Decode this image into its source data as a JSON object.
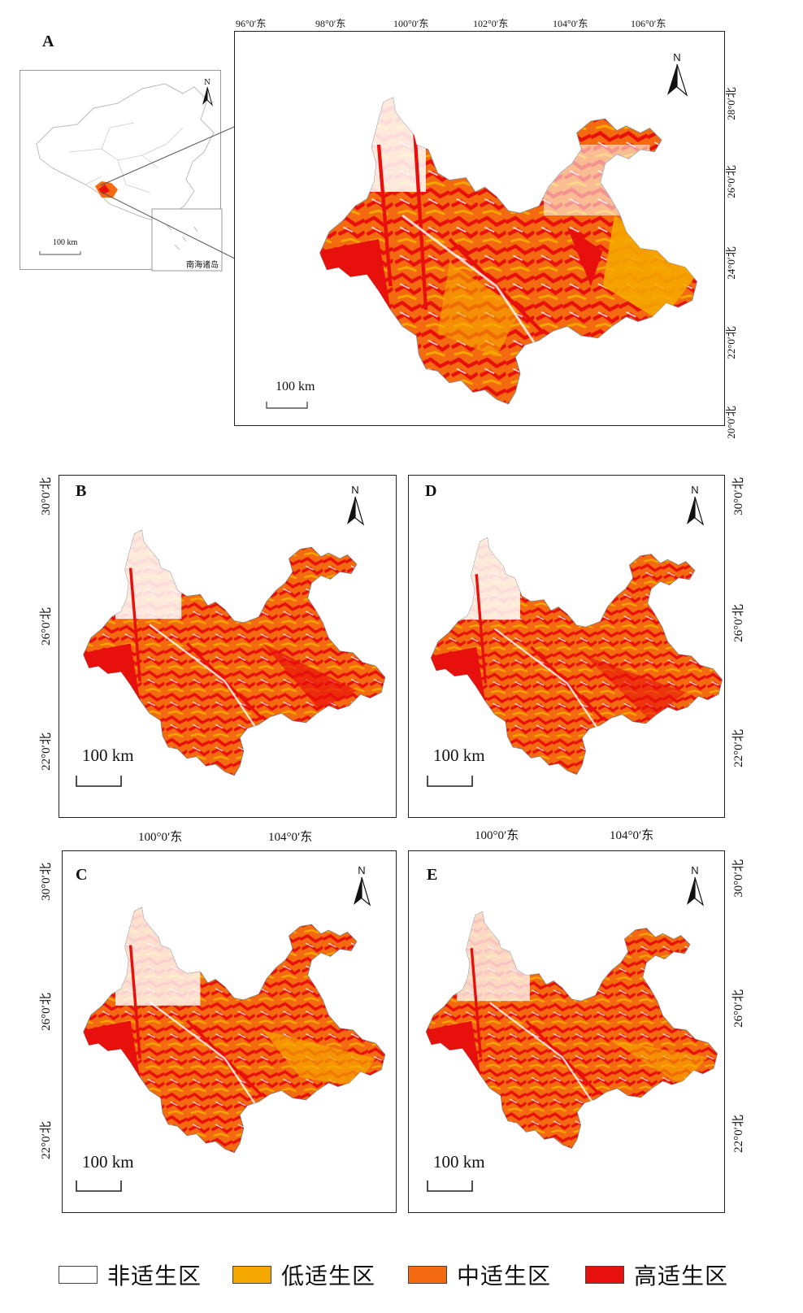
{
  "panels": {
    "A": {
      "label": "A"
    },
    "B": {
      "label": "B"
    },
    "C": {
      "label": "C"
    },
    "D": {
      "label": "D"
    },
    "E": {
      "label": "E"
    }
  },
  "main_map": {
    "top_ticks": [
      "96°0′东",
      "98°0′东",
      "100°0′东",
      "102°0′东",
      "104°0′东",
      "106°0′东"
    ],
    "right_ticks": [
      "28°0′北",
      "26°0′北",
      "24°0′北",
      "22°0′北",
      "20°0′北"
    ],
    "scale_label": "100 km"
  },
  "inset_china": {
    "scale_label": "100 km",
    "south_sea_label": "南海诸岛",
    "north_label": "N"
  },
  "small_maps": {
    "north_label": "N",
    "scale_label": "100 km",
    "left_ticks": [
      "30°0′北",
      "26°0′北",
      "22°0′北"
    ],
    "right_ticks": [
      "30°0′北",
      "26°0′北",
      "22°0′北"
    ],
    "middle_ticks": [
      "100°0′东",
      "104°0′东"
    ]
  },
  "legend": [
    {
      "label": "非适生区",
      "color": "#ffffff"
    },
    {
      "label": "低适生区",
      "color": "#f5a800"
    },
    {
      "label": "中适生区",
      "color": "#f36a10"
    },
    {
      "label": "高适生区",
      "color": "#e8100c"
    }
  ]
}
